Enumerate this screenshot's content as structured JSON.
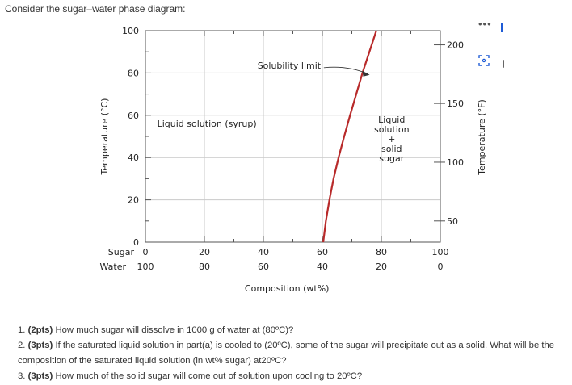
{
  "intro_text": "Consider the sugar–water phase diagram:",
  "chart_data": {
    "type": "line",
    "title": "",
    "x_axis": {
      "label": "Composition (wt%)",
      "sugar_row_label": "Sugar",
      "water_row_label": "Water",
      "sugar_ticks": [
        "0",
        "20",
        "40",
        "60",
        "80",
        "100"
      ],
      "water_ticks": [
        "100",
        "80",
        "60",
        "40",
        "20",
        "0"
      ],
      "xlim": [
        0,
        100
      ]
    },
    "y_axis_left": {
      "label": "Temperature (°C)",
      "ticks": [
        "0",
        "20",
        "40",
        "60",
        "80",
        "100"
      ],
      "ylim": [
        0,
        100
      ]
    },
    "y_axis_right": {
      "label": "Temperature (°F)",
      "ticks": [
        "50",
        "100",
        "150",
        "200"
      ],
      "tick_values_c": [
        10,
        37.8,
        65.6,
        93.3
      ]
    },
    "series": [
      {
        "name": "Solubility limit",
        "color": "#b82a2a",
        "x": [
          60.3,
          61.2,
          62.4,
          63.8,
          65.5,
          67.4,
          69.4,
          71.5,
          73.6
        ],
        "y": [
          0,
          10,
          20,
          30,
          40,
          50,
          60,
          70,
          80
        ]
      }
    ],
    "ylim_extent": [
      0,
      100
    ],
    "curve_top": {
      "x": 78.3,
      "y": 100
    },
    "region_labels": {
      "liquid": "Liquid solution (syrup)",
      "two_phase": [
        "Liquid",
        "solution",
        "+",
        "solid",
        "sugar"
      ]
    },
    "annotation": "Solubility limit",
    "grid": true
  },
  "questions": [
    {
      "points": "(2pts)",
      "text": "How much sugar will dissolve in 1000 g of water at (80ºC)?"
    },
    {
      "points": "(3pts)",
      "text": "If the saturated liquid solution in part(a) is cooled to (20ºC), some of the sugar will precipitate out as a solid. What will be the composition of the saturated liquid solution (in wt% sugar) at20ºC?"
    },
    {
      "points": "(3pts)",
      "text": "How much of the solid sugar will come out of solution upon cooling to 20ºC?"
    }
  ],
  "icons": {
    "more": "more-options-icon",
    "expand": "expand-icon"
  },
  "colors": {
    "curve": "#b82a2a",
    "grid": "#c9c9c9",
    "axis": "#555555"
  }
}
